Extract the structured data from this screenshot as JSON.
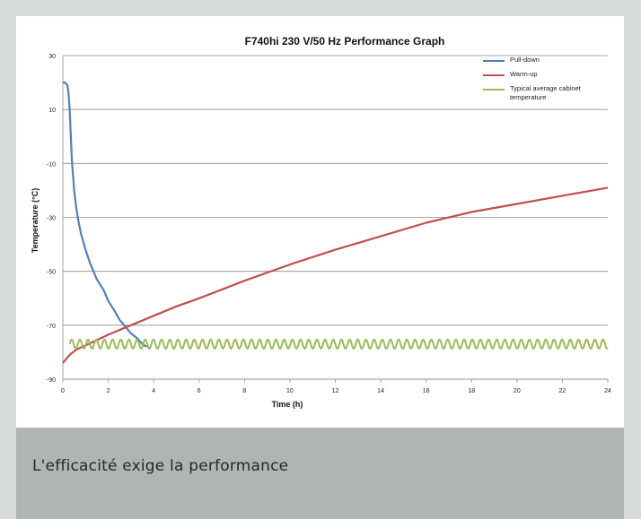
{
  "caption": "L'efficacité exige la performance",
  "chart_data": {
    "type": "line",
    "title": "F740hi 230 V/50 Hz Performance Graph",
    "xlabel": "Time (h)",
    "ylabel": "Temperature (°C)",
    "xlim": [
      0,
      24
    ],
    "ylim": [
      -90,
      30
    ],
    "xticks": [
      0,
      2,
      4,
      6,
      8,
      10,
      12,
      14,
      16,
      18,
      20,
      22,
      24
    ],
    "yticks": [
      30,
      10,
      -10,
      -30,
      -50,
      -70,
      -90
    ],
    "grid": "horizontal",
    "legend_position": "top-right",
    "series": [
      {
        "name": "Pull-down",
        "color": "#4f81bd",
        "x": [
          0,
          0.1,
          0.2,
          0.25,
          0.3,
          0.35,
          0.4,
          0.5,
          0.6,
          0.7,
          0.8,
          1.0,
          1.2,
          1.5,
          1.8,
          2.0,
          2.3,
          2.5,
          2.8,
          3.0,
          3.3,
          3.5,
          3.7
        ],
        "y": [
          20,
          20,
          19,
          16,
          10,
          0,
          -9,
          -20,
          -27,
          -32,
          -36,
          -42,
          -47,
          -53,
          -57,
          -61,
          -65,
          -68,
          -71,
          -73,
          -75,
          -77,
          -78
        ]
      },
      {
        "name": "Warm-up",
        "color": "#c0504d",
        "x": [
          0,
          0.3,
          0.6,
          1,
          1.5,
          2,
          3,
          4,
          5,
          6,
          8,
          10,
          12,
          14,
          16,
          18,
          20,
          22,
          24
        ],
        "y": [
          -84,
          -81,
          -79,
          -77.5,
          -75.5,
          -73.5,
          -70,
          -66.5,
          -63,
          -60,
          -53.5,
          -47.5,
          -42,
          -37,
          -32,
          -28,
          -25,
          -22,
          -19
        ]
      },
      {
        "name": "Typical average cabinet temperature",
        "color": "#9bbb59",
        "x_start": 0.3,
        "x_end": 24,
        "mean": -77,
        "amplitude": 1.7,
        "period": 0.36
      }
    ]
  }
}
